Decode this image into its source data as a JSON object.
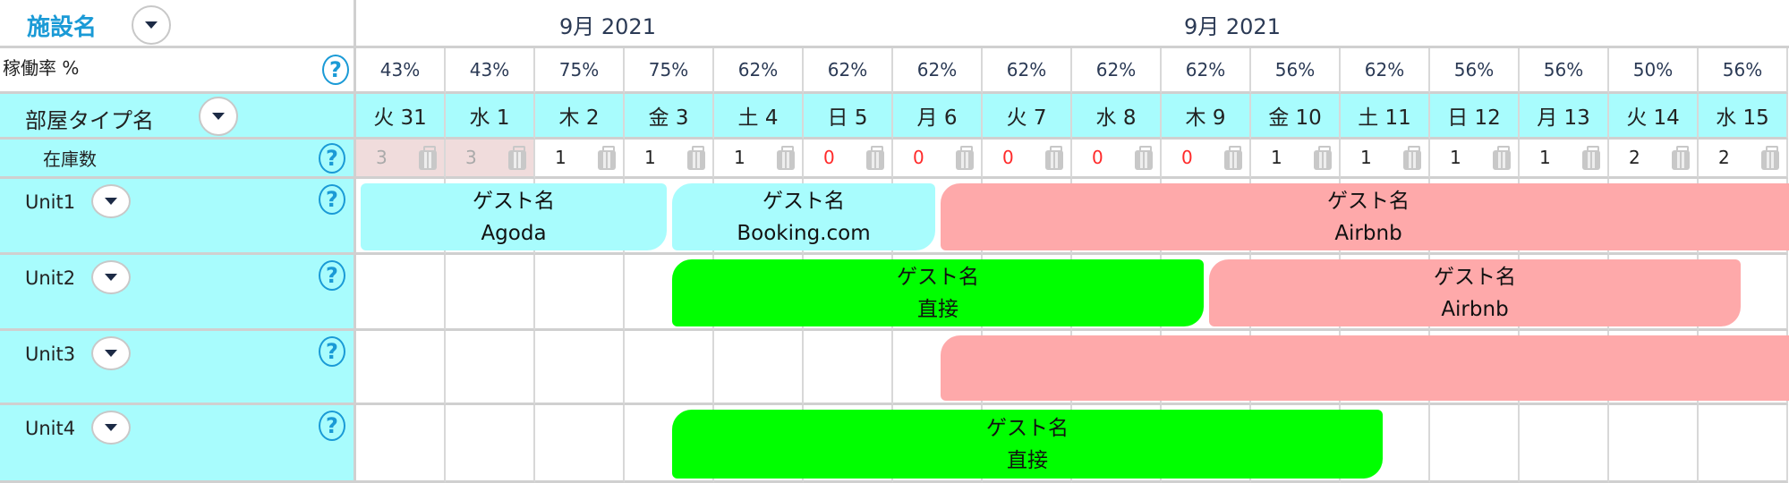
{
  "header": {
    "facility_label": "施設名",
    "months": [
      "9月 2021",
      "9月 2021"
    ]
  },
  "occupancy": {
    "label": "稼働率 %",
    "values": [
      "43%",
      "43%",
      "75%",
      "75%",
      "62%",
      "62%",
      "62%",
      "62%",
      "62%",
      "62%",
      "56%",
      "62%",
      "56%",
      "56%",
      "50%",
      "56%"
    ]
  },
  "room_type": {
    "label": "部屋タイプ名"
  },
  "days": [
    "火 31",
    "水 1",
    "木 2",
    "金 3",
    "土 4",
    "日 5",
    "月 6",
    "火 7",
    "水 8",
    "木 9",
    "金 10",
    "土 11",
    "日 12",
    "月 13",
    "火 14",
    "水 15"
  ],
  "inventory": {
    "label": "在庫数",
    "values": [
      "3",
      "3",
      "1",
      "1",
      "1",
      "0",
      "0",
      "0",
      "0",
      "0",
      "1",
      "1",
      "1",
      "1",
      "2",
      "2"
    ],
    "past_days": 2
  },
  "units": [
    {
      "name": "Unit1",
      "bookings": [
        {
          "guest": "ゲスト名",
          "channel": "Agoda",
          "from": null,
          "to": "9/2",
          "color": "#a8fcfd"
        },
        {
          "guest": "ゲスト名",
          "channel": "Booking.com",
          "from": "9/2",
          "to": "9/5",
          "color": "#a8fcfd"
        },
        {
          "guest": "ゲスト名",
          "channel": "Airbnb",
          "from": "9/5",
          "to": null,
          "color": "#fea9aa"
        }
      ]
    },
    {
      "name": "Unit2",
      "bookings": [
        {
          "guest": "ゲスト名",
          "channel": "直接",
          "from": "9/2",
          "to": "9/8",
          "color": "#00ff00"
        },
        {
          "guest": "ゲスト名",
          "channel": "Airbnb",
          "from": "9/8",
          "to": "9/14",
          "color": "#fea9aa"
        }
      ]
    },
    {
      "name": "Unit3",
      "bookings": [
        {
          "guest": "",
          "channel": "",
          "from": "9/5",
          "to": null,
          "color": "#fea9aa"
        }
      ]
    },
    {
      "name": "Unit4",
      "bookings": [
        {
          "guest": "ゲスト名",
          "channel": "直接",
          "from": "9/2",
          "to": "9/10",
          "color": "#00ff00"
        }
      ]
    }
  ],
  "colors": {
    "accent": "#1a9ad6",
    "row_header": "#a8fcfd",
    "zero_stock": "#ff2a2a",
    "past_stock": "#f0dcdc"
  }
}
